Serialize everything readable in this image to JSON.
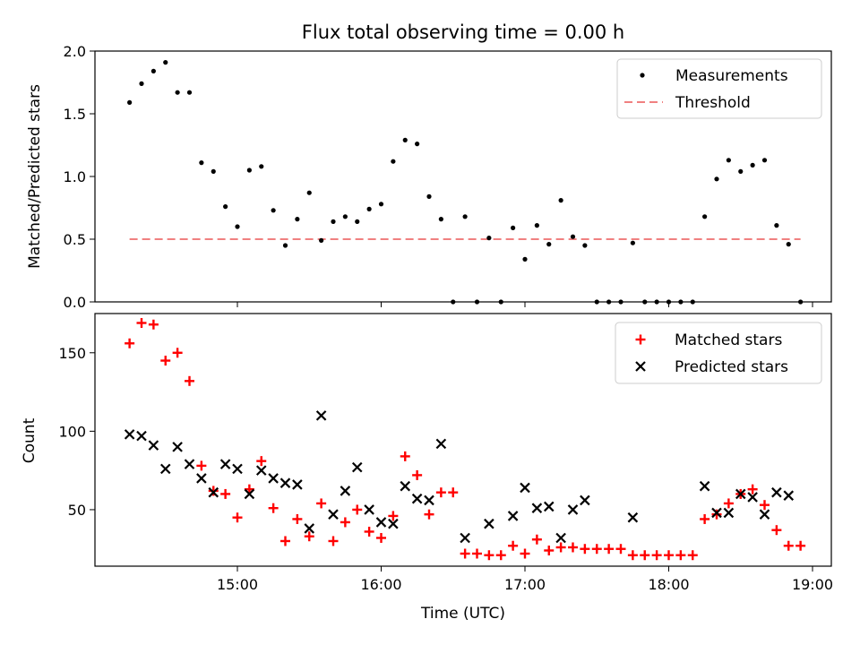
{
  "title": "Flux total observing time = 0.00 h",
  "colors": {
    "measurement": "#000000",
    "threshold": "#f08080",
    "matched": "#ff0000",
    "predicted": "#000000"
  },
  "chart_data": [
    {
      "type": "scatter",
      "ylabel": "Matched/Predicted stars",
      "xlabel": "",
      "ylim": [
        0,
        2.0
      ],
      "yticks": [
        "0.0",
        "0.5",
        "1.0",
        "1.5",
        "2.0"
      ],
      "legend": {
        "placement": "top-right",
        "entries": [
          "Measurements",
          "Threshold"
        ]
      },
      "threshold": {
        "value": 0.5,
        "x_start": "14:15",
        "x_end": "18:55"
      },
      "series": [
        {
          "name": "Measurements",
          "marker": "dot",
          "points": [
            [
              "14:15",
              1.59
            ],
            [
              "14:20",
              1.74
            ],
            [
              "14:25",
              1.84
            ],
            [
              "14:30",
              1.91
            ],
            [
              "14:35",
              1.67
            ],
            [
              "14:40",
              1.67
            ],
            [
              "14:45",
              1.11
            ],
            [
              "14:50",
              1.04
            ],
            [
              "14:55",
              0.76
            ],
            [
              "15:00",
              0.6
            ],
            [
              "15:05",
              1.05
            ],
            [
              "15:10",
              1.08
            ],
            [
              "15:15",
              0.73
            ],
            [
              "15:20",
              0.45
            ],
            [
              "15:25",
              0.66
            ],
            [
              "15:30",
              0.87
            ],
            [
              "15:35",
              0.49
            ],
            [
              "15:40",
              0.64
            ],
            [
              "15:45",
              0.68
            ],
            [
              "15:50",
              0.64
            ],
            [
              "15:55",
              0.74
            ],
            [
              "16:00",
              0.78
            ],
            [
              "16:05",
              1.12
            ],
            [
              "16:10",
              1.29
            ],
            [
              "16:15",
              1.26
            ],
            [
              "16:20",
              0.84
            ],
            [
              "16:25",
              0.66
            ],
            [
              "16:30",
              0.0
            ],
            [
              "16:35",
              0.68
            ],
            [
              "16:40",
              0.0
            ],
            [
              "16:45",
              0.51
            ],
            [
              "16:50",
              0.0
            ],
            [
              "16:55",
              0.59
            ],
            [
              "17:00",
              0.34
            ],
            [
              "17:05",
              0.61
            ],
            [
              "17:10",
              0.46
            ],
            [
              "17:15",
              0.81
            ],
            [
              "17:20",
              0.52
            ],
            [
              "17:25",
              0.45
            ],
            [
              "17:30",
              0.0
            ],
            [
              "17:35",
              0.0
            ],
            [
              "17:40",
              0.0
            ],
            [
              "17:45",
              0.47
            ],
            [
              "17:50",
              0.0
            ],
            [
              "17:55",
              0.0
            ],
            [
              "18:00",
              0.0
            ],
            [
              "18:05",
              0.0
            ],
            [
              "18:10",
              0.0
            ],
            [
              "18:15",
              0.68
            ],
            [
              "18:20",
              0.98
            ],
            [
              "18:25",
              1.13
            ],
            [
              "18:30",
              1.04
            ],
            [
              "18:35",
              1.09
            ],
            [
              "18:40",
              1.13
            ],
            [
              "18:45",
              0.61
            ],
            [
              "18:50",
              0.46
            ],
            [
              "18:55",
              0.0
            ]
          ]
        }
      ]
    },
    {
      "type": "scatter",
      "ylabel": "Count",
      "xlabel": "Time (UTC)",
      "ylim": [
        14,
        175
      ],
      "yticks": [
        "50",
        "100",
        "150"
      ],
      "xticks": [
        "15:00",
        "16:00",
        "17:00",
        "18:00",
        "19:00"
      ],
      "legend": {
        "placement": "top-right",
        "entries": [
          "Matched stars",
          "Predicted stars"
        ]
      },
      "series": [
        {
          "name": "Matched stars",
          "marker": "plus",
          "points": [
            [
              "14:15",
              156
            ],
            [
              "14:20",
              169
            ],
            [
              "14:25",
              168
            ],
            [
              "14:30",
              145
            ],
            [
              "14:35",
              150
            ],
            [
              "14:40",
              132
            ],
            [
              "14:45",
              78
            ],
            [
              "14:50",
              62
            ],
            [
              "14:55",
              60
            ],
            [
              "15:00",
              45
            ],
            [
              "15:05",
              63
            ],
            [
              "15:10",
              81
            ],
            [
              "15:15",
              51
            ],
            [
              "15:20",
              30
            ],
            [
              "15:25",
              44
            ],
            [
              "15:30",
              33
            ],
            [
              "15:35",
              54
            ],
            [
              "15:40",
              30
            ],
            [
              "15:45",
              42
            ],
            [
              "15:50",
              50
            ],
            [
              "15:55",
              36
            ],
            [
              "16:00",
              32
            ],
            [
              "16:05",
              46
            ],
            [
              "16:10",
              84
            ],
            [
              "16:15",
              72
            ],
            [
              "16:20",
              47
            ],
            [
              "16:25",
              61
            ],
            [
              "16:30",
              61
            ],
            [
              "16:35",
              22
            ],
            [
              "16:40",
              22
            ],
            [
              "16:45",
              21
            ],
            [
              "16:50",
              21
            ],
            [
              "16:55",
              27
            ],
            [
              "17:00",
              22
            ],
            [
              "17:05",
              31
            ],
            [
              "17:10",
              24
            ],
            [
              "17:15",
              26
            ],
            [
              "17:20",
              26
            ],
            [
              "17:25",
              25
            ],
            [
              "17:30",
              25
            ],
            [
              "17:35",
              25
            ],
            [
              "17:40",
              25
            ],
            [
              "17:45",
              21
            ],
            [
              "17:50",
              21
            ],
            [
              "17:55",
              21
            ],
            [
              "18:00",
              21
            ],
            [
              "18:05",
              21
            ],
            [
              "18:10",
              21
            ],
            [
              "18:15",
              44
            ],
            [
              "18:20",
              47
            ],
            [
              "18:25",
              54
            ],
            [
              "18:30",
              60
            ],
            [
              "18:35",
              63
            ],
            [
              "18:40",
              53
            ],
            [
              "18:45",
              37
            ],
            [
              "18:50",
              27
            ],
            [
              "18:55",
              27
            ]
          ]
        },
        {
          "name": "Predicted stars",
          "marker": "x",
          "points": [
            [
              "14:15",
              98
            ],
            [
              "14:20",
              97
            ],
            [
              "14:25",
              91
            ],
            [
              "14:30",
              76
            ],
            [
              "14:35",
              90
            ],
            [
              "14:40",
              79
            ],
            [
              "14:45",
              70
            ],
            [
              "14:50",
              61
            ],
            [
              "14:55",
              79
            ],
            [
              "15:00",
              76
            ],
            [
              "15:05",
              60
            ],
            [
              "15:10",
              75
            ],
            [
              "15:15",
              70
            ],
            [
              "15:20",
              67
            ],
            [
              "15:25",
              66
            ],
            [
              "15:30",
              38
            ],
            [
              "15:35",
              110
            ],
            [
              "15:40",
              47
            ],
            [
              "15:45",
              62
            ],
            [
              "15:50",
              77
            ],
            [
              "15:55",
              50
            ],
            [
              "16:00",
              42
            ],
            [
              "16:05",
              41
            ],
            [
              "16:10",
              65
            ],
            [
              "16:15",
              57
            ],
            [
              "16:20",
              56
            ],
            [
              "16:25",
              92
            ],
            [
              "16:35",
              32
            ],
            [
              "16:45",
              41
            ],
            [
              "16:55",
              46
            ],
            [
              "17:00",
              64
            ],
            [
              "17:05",
              51
            ],
            [
              "17:10",
              52
            ],
            [
              "17:15",
              32
            ],
            [
              "17:20",
              50
            ],
            [
              "17:25",
              56
            ],
            [
              "17:45",
              45
            ],
            [
              "18:15",
              65
            ],
            [
              "18:20",
              48
            ],
            [
              "18:25",
              48
            ],
            [
              "18:30",
              60
            ],
            [
              "18:35",
              58
            ],
            [
              "18:40",
              47
            ],
            [
              "18:45",
              61
            ],
            [
              "18:50",
              59
            ]
          ]
        }
      ]
    }
  ]
}
